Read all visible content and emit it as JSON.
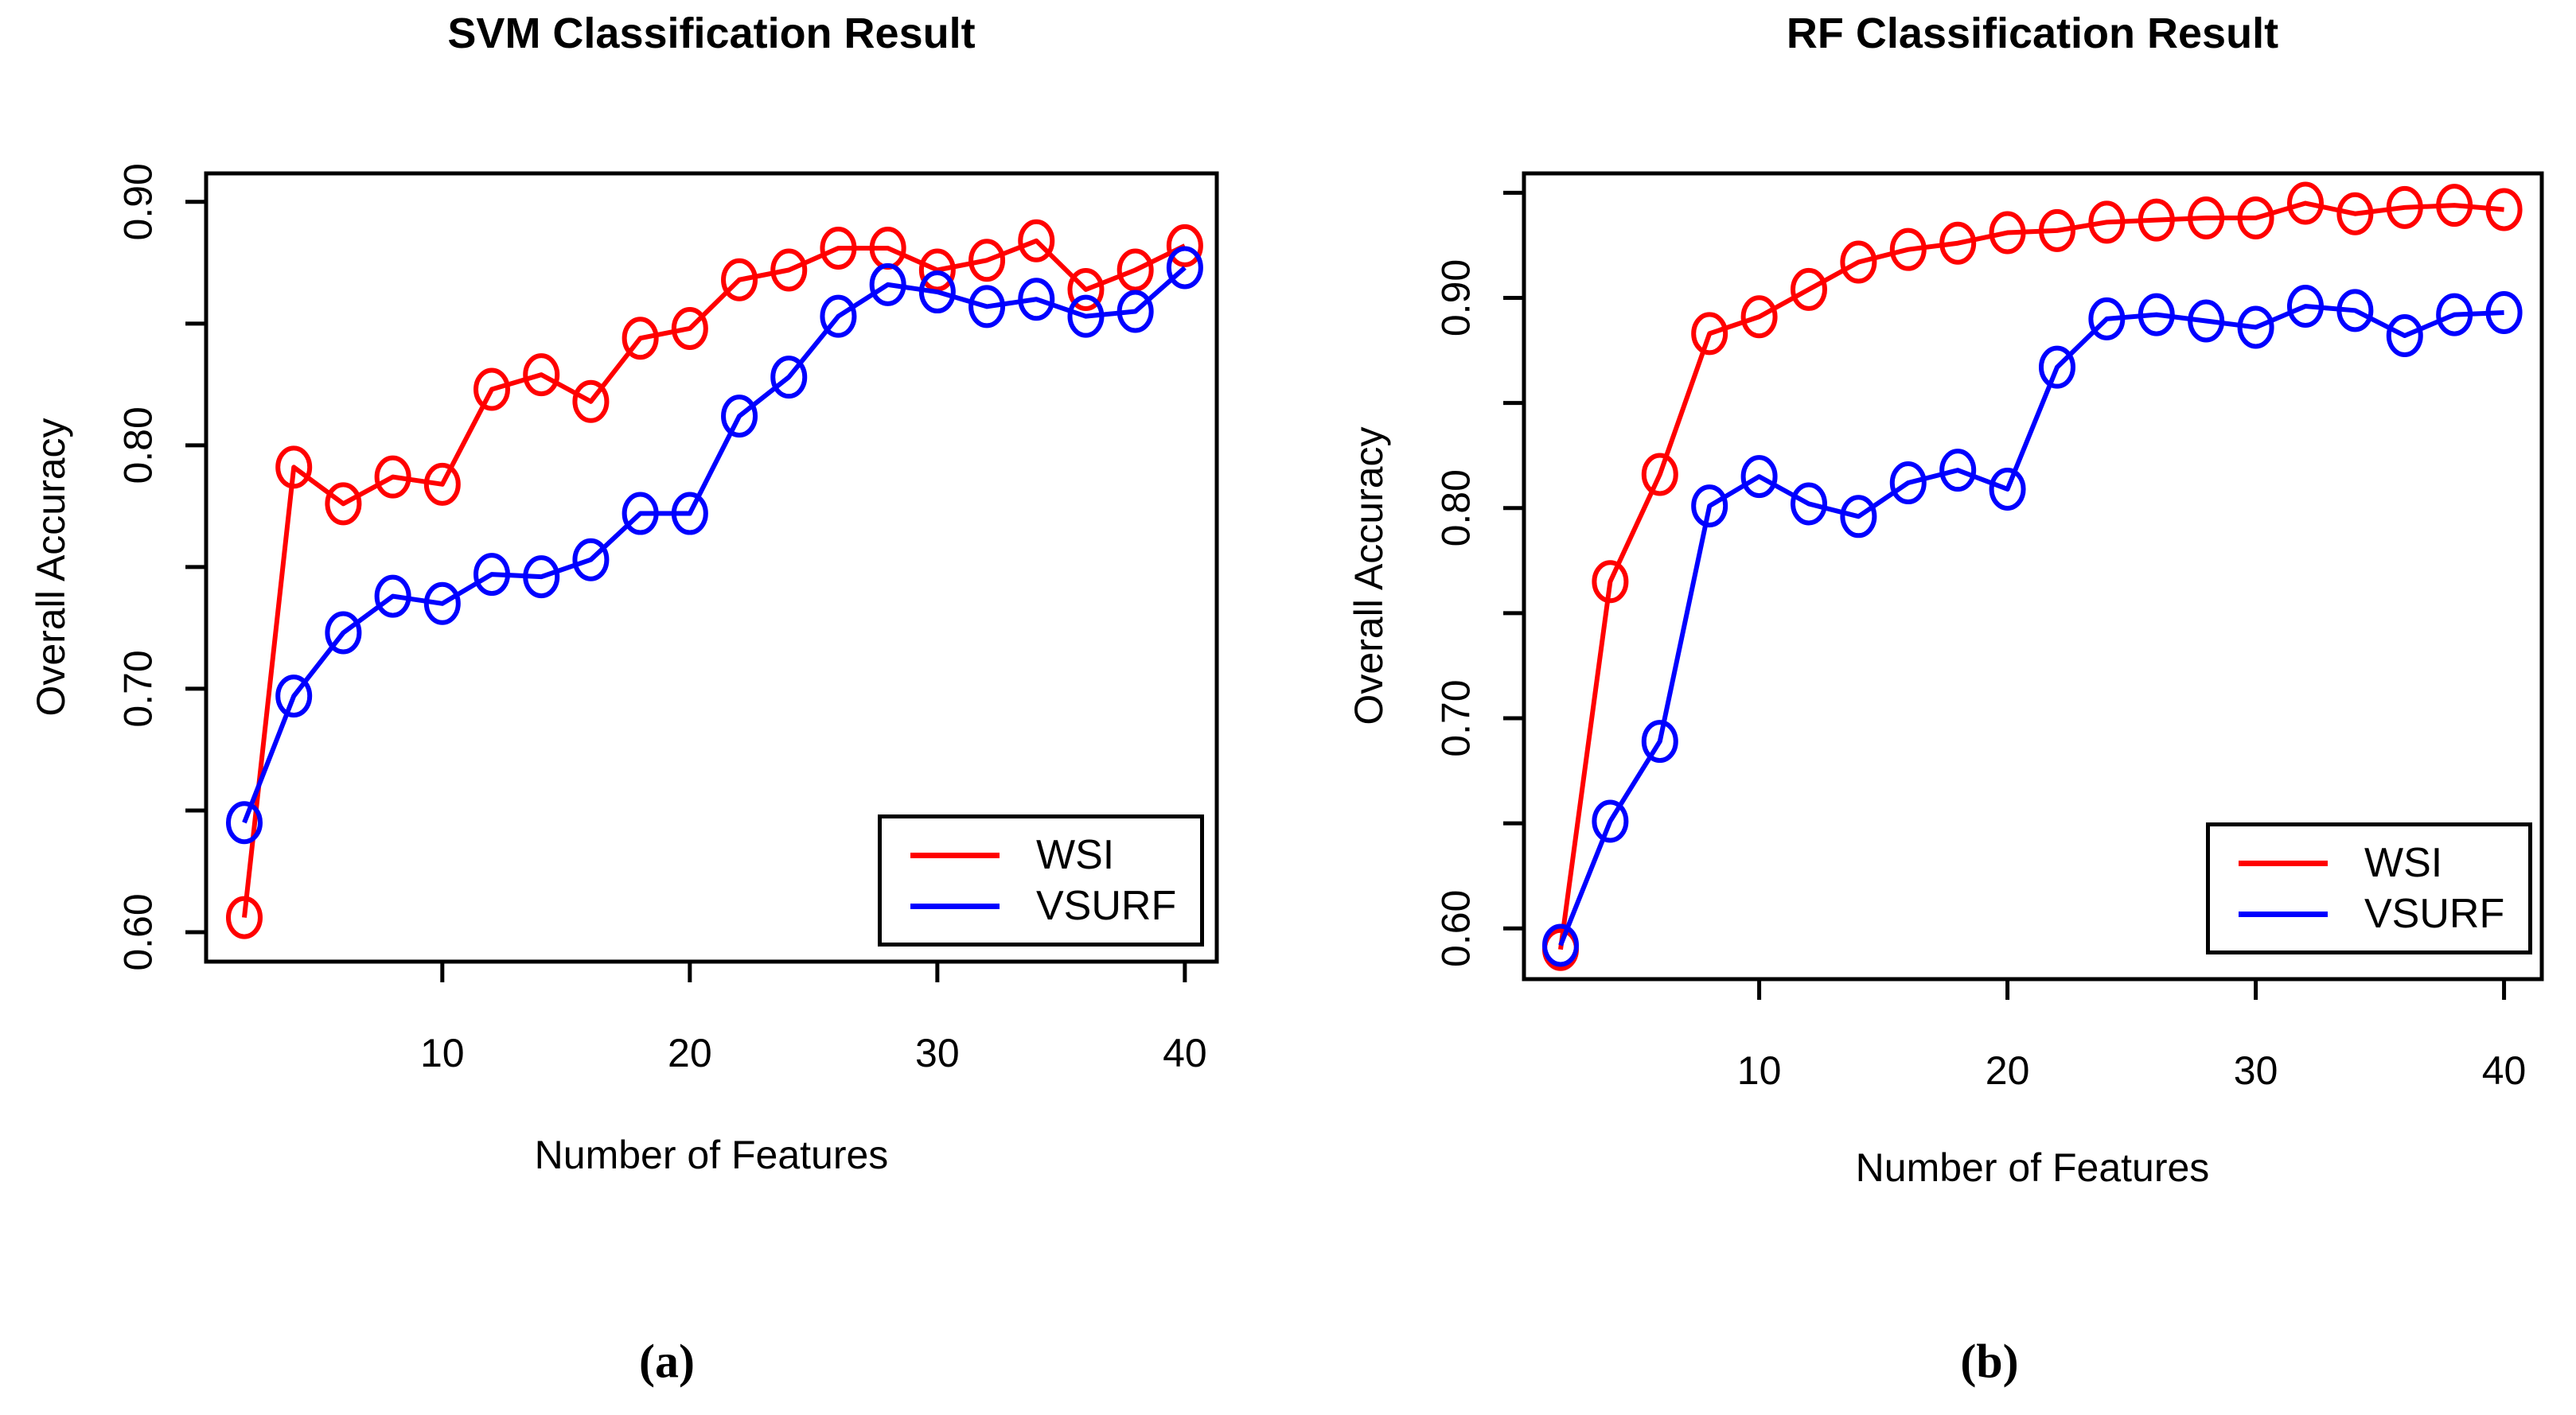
{
  "figure": {
    "background": "#ffffff",
    "axis_color": "#000000"
  },
  "chart_data": [
    {
      "type": "line",
      "title": "SVM Classification Result",
      "xlabel": "Number of Features",
      "ylabel": "Overall Accuracy",
      "caption": "(a)",
      "grid": false,
      "marker": "open-circle",
      "legend_position": "bottom-right",
      "x": [
        2,
        4,
        6,
        8,
        10,
        12,
        14,
        16,
        18,
        20,
        22,
        24,
        26,
        28,
        30,
        32,
        34,
        36,
        38,
        40
      ],
      "series": [
        {
          "name": "WSI",
          "color": "#ff0000",
          "values": [
            0.606,
            0.791,
            0.776,
            0.787,
            0.784,
            0.823,
            0.829,
            0.818,
            0.844,
            0.848,
            0.868,
            0.872,
            0.881,
            0.881,
            0.872,
            0.876,
            0.884,
            0.864,
            0.872,
            0.882
          ]
        },
        {
          "name": "VSURF",
          "color": "#0000ff",
          "values": [
            0.645,
            0.697,
            0.723,
            0.738,
            0.735,
            0.747,
            0.746,
            0.753,
            0.772,
            0.772,
            0.812,
            0.828,
            0.853,
            0.866,
            0.863,
            0.857,
            0.86,
            0.853,
            0.855,
            0.873
          ]
        }
      ],
      "xticks": [
        10,
        20,
        30,
        40
      ],
      "yticks": [
        {
          "v": 0.6,
          "label": "0.60"
        },
        {
          "v": 0.65,
          "label": ""
        },
        {
          "v": 0.7,
          "label": "0.70"
        },
        {
          "v": 0.75,
          "label": ""
        },
        {
          "v": 0.8,
          "label": "0.80"
        },
        {
          "v": 0.85,
          "label": ""
        },
        {
          "v": 0.9,
          "label": "0.90"
        }
      ],
      "xlim": [
        0.457,
        41.29
      ],
      "ylim": [
        0.5879,
        0.9117
      ]
    },
    {
      "type": "line",
      "title": "RF Classification Result",
      "xlabel": "Number of Features",
      "ylabel": "Overall Accuracy",
      "caption": "(b)",
      "grid": false,
      "marker": "open-circle",
      "legend_position": "bottom-right",
      "x": [
        2,
        4,
        6,
        8,
        10,
        12,
        14,
        16,
        18,
        20,
        22,
        24,
        26,
        28,
        30,
        32,
        34,
        36,
        38,
        40
      ],
      "series": [
        {
          "name": "WSI",
          "color": "#ff0000",
          "values": [
            0.59,
            0.765,
            0.816,
            0.883,
            0.891,
            0.904,
            0.917,
            0.923,
            0.926,
            0.931,
            0.932,
            0.936,
            0.937,
            0.938,
            0.938,
            0.945,
            0.94,
            0.943,
            0.944,
            0.942
          ]
        },
        {
          "name": "VSURF",
          "color": "#0000ff",
          "values": [
            0.592,
            0.651,
            0.689,
            0.801,
            0.815,
            0.802,
            0.796,
            0.812,
            0.818,
            0.809,
            0.867,
            0.89,
            0.892,
            0.889,
            0.886,
            0.896,
            0.894,
            0.882,
            0.892,
            0.893
          ]
        }
      ],
      "xticks": [
        10,
        20,
        30,
        40
      ],
      "yticks": [
        {
          "v": 0.6,
          "label": "0.60"
        },
        {
          "v": 0.65,
          "label": ""
        },
        {
          "v": 0.7,
          "label": "0.70"
        },
        {
          "v": 0.75,
          "label": ""
        },
        {
          "v": 0.8,
          "label": "0.80"
        },
        {
          "v": 0.85,
          "label": ""
        },
        {
          "v": 0.9,
          "label": "0.90"
        },
        {
          "v": 0.95,
          "label": ""
        }
      ],
      "xlim": [
        0.526,
        41.52
      ],
      "ylim": [
        0.5759,
        0.9592
      ]
    }
  ]
}
